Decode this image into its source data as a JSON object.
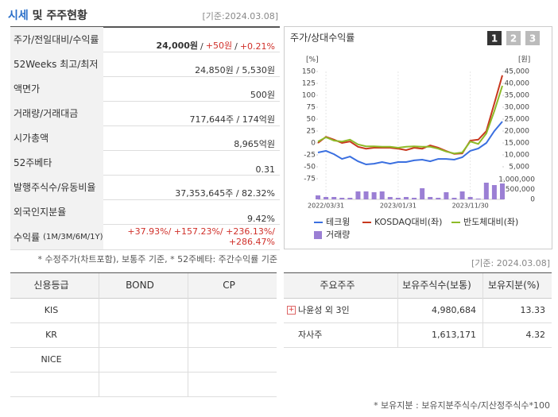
{
  "header": {
    "title_highlight": "시세",
    "title_rest": "및 주주현황",
    "date": "[기준:2024.03.08]"
  },
  "summary": {
    "rows": [
      {
        "label": [
          "주가/전일대비/수익률"
        ],
        "value": [
          "24,000원",
          "/",
          "+50원",
          "/",
          "+0.21%"
        ]
      },
      {
        "label": [
          "52Weeks 최고/최저"
        ],
        "value": [
          "24,850원 / 5,530원"
        ]
      },
      {
        "label": [
          "액면가"
        ],
        "value": [
          "500원"
        ]
      },
      {
        "label": [
          "거래량/거래대금"
        ],
        "value": [
          "717,644주 / 174억원"
        ]
      },
      {
        "label": [
          "시가총액"
        ],
        "value": [
          "8,965억원"
        ]
      },
      {
        "label": [
          "52주베타"
        ],
        "value": [
          "0.31"
        ]
      },
      {
        "label": [
          "발행주식수/유동비율"
        ],
        "value": [
          "37,353,645주 / 82.32%"
        ]
      },
      {
        "label": [
          "외국인지분율"
        ],
        "value": [
          "9.42%"
        ]
      },
      {
        "label": [
          "수익률",
          "(1M/3M/6M/1Y)"
        ],
        "value": [
          "+37.93%/ +157.23%/ +236.13%/",
          "+286.47%"
        ]
      }
    ],
    "note": "* 수정주가(차트포함), 보통주 기준, * 52주베타: 주간수익률 기준"
  },
  "chart": {
    "type": "line",
    "title": "주가/상대수익률",
    "buttons": [
      "1",
      "2",
      "3"
    ],
    "y_unit": "[%]",
    "y2_unit": "[원]",
    "categories": [
      null,
      "2022/03/31",
      null,
      null,
      null,
      null,
      null,
      null,
      null,
      null,
      "2023/01/31",
      null,
      null,
      null,
      null,
      null,
      null,
      null,
      null,
      "2023/11/30",
      null,
      null,
      null,
      null
    ],
    "ylim": [
      -75,
      150
    ],
    "yticks": [
      150,
      125,
      100,
      75,
      50,
      25,
      0,
      -25,
      -50,
      -75
    ],
    "y2lim": [
      0,
      45000
    ],
    "y2ticks": [
      {
        "value": 45000,
        "label": "45,000"
      },
      {
        "value": 40000,
        "label": "40,000"
      },
      {
        "value": 35000,
        "label": "35,000"
      },
      {
        "value": 30000,
        "label": "30,000"
      },
      {
        "value": 25000,
        "label": "25,000"
      },
      {
        "value": 20000,
        "label": "20,000"
      },
      {
        "value": 15000,
        "label": "15,000"
      },
      {
        "value": 10000,
        "label": "10,000"
      },
      {
        "value": 5000,
        "label": "5,000"
      }
    ],
    "y3lim": [
      0,
      1000000
    ],
    "y3ticks": [
      {
        "value": 1000000,
        "label": "1,000,000"
      },
      {
        "value": 500000,
        "label": "500,000"
      },
      0
    ],
    "series": [
      {
        "name": "테크윙",
        "color": "#3a6fe0",
        "axis": "y2",
        "values": [
          11000,
          11700,
          10300,
          8300,
          9300,
          7300,
          6000,
          6300,
          7000,
          6300,
          7000,
          7000,
          7700,
          8000,
          7300,
          8300,
          8300,
          8000,
          9000,
          11700,
          12700,
          15000,
          20000,
          24000
        ]
      },
      {
        "name": "KOSDAQ대비(좌)",
        "color": "#c8381e",
        "values": [
          0,
          13,
          7,
          0,
          3,
          -8,
          -12,
          -10,
          -10,
          -10,
          -12,
          -15,
          -10,
          -12,
          -5,
          -10,
          -17,
          -23,
          -22,
          5,
          7,
          25,
          83,
          142
        ]
      },
      {
        "name": "반도체대비(좌)",
        "color": "#8dba28",
        "values": [
          3,
          12,
          5,
          3,
          7,
          -3,
          -7,
          -7,
          -8,
          -8,
          -10,
          -8,
          -7,
          -8,
          -8,
          -12,
          -18,
          -22,
          -20,
          3,
          -2,
          20,
          67,
          120
        ]
      },
      {
        "name": "거래량",
        "color": "#9b7fd4",
        "type": "bar",
        "axis": "y3",
        "values": [
          200000,
          120000,
          120000,
          80000,
          80000,
          400000,
          400000,
          360000,
          400000,
          120000,
          80000,
          120000,
          80000,
          560000,
          120000,
          80000,
          360000,
          80000,
          400000,
          120000,
          40000,
          840000,
          720000,
          800000
        ]
      }
    ]
  },
  "ratings": {
    "header": [
      "신용등급",
      "BOND",
      "CP"
    ],
    "rows": [
      [
        "KIS"
      ],
      [
        "KR"
      ],
      [
        "NICE"
      ],
      []
    ]
  },
  "holders": {
    "date": "[기준: 2024.03.08]",
    "header": [
      "주요주주",
      "보유주식수(보통)",
      "보유지분(%)"
    ],
    "rows": [
      [
        "나윤성 외 3인",
        "4,980,684",
        "13.33"
      ],
      [
        "자사주",
        "1,613,171",
        "4.32"
      ]
    ],
    "note": "* 보유지분 : 보유지분주식수/지산정주식수*100"
  }
}
